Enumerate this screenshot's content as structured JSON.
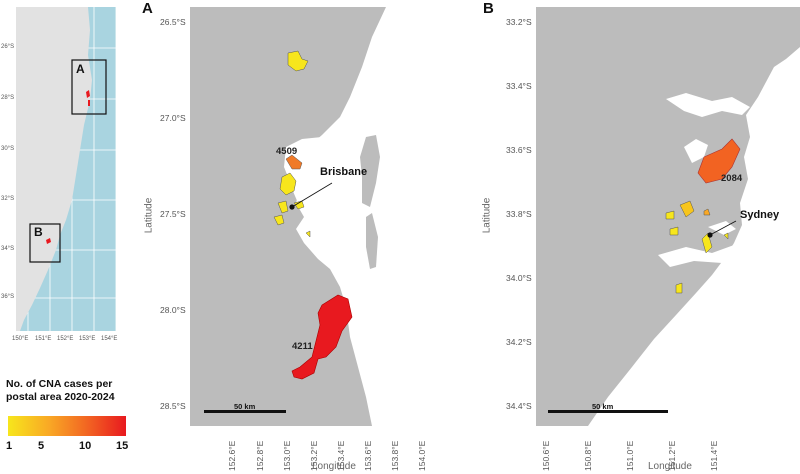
{
  "overview": {
    "box_a_label": "A",
    "box_b_label": "B",
    "y_ticks": [
      "26°S",
      "28°S",
      "30°S",
      "32°S",
      "34°S",
      "36°S"
    ],
    "x_ticks": [
      "150°E",
      "151°E",
      "152°E",
      "153°E",
      "154°E"
    ],
    "colors": {
      "land": "#e2e2e2",
      "sea": "#a9d4e0"
    }
  },
  "panel_a": {
    "letter": "A",
    "y_ticks": [
      "26.5°S",
      "27.0°S",
      "27.5°S",
      "28.0°S",
      "28.5°S"
    ],
    "x_ticks": [
      "152.6°E",
      "152.8°E",
      "153.0°E",
      "153.2°E",
      "153.4°E",
      "153.6°E",
      "153.8°E",
      "154.0°E"
    ],
    "x_axis_title": "Longitude",
    "y_axis_title": "Latitude",
    "postcode_4509": "4509",
    "postcode_4211": "4211",
    "city": "Brisbane",
    "scale_label": "50 km"
  },
  "panel_b": {
    "letter": "B",
    "y_ticks": [
      "33.2°S",
      "33.4°S",
      "33.6°S",
      "33.8°S",
      "34.0°S",
      "34.2°S",
      "34.4°S"
    ],
    "x_ticks": [
      "150.6°E",
      "150.8°E",
      "151.0°E",
      "151.2°E",
      "151.4°E"
    ],
    "x_axis_title": "Longitude",
    "y_axis_title": "Latitude",
    "postcode_2084": "2084",
    "city": "Sydney",
    "scale_label": "50 km"
  },
  "legend": {
    "title_line1": "No. of CNA cases per",
    "title_line2": "postal area 2020-2024",
    "ticks": [
      "1",
      "5",
      "10",
      "15"
    ],
    "range": [
      1,
      15
    ],
    "colors": [
      "#f7e61c",
      "#f9a825",
      "#f26322",
      "#e8191f"
    ]
  }
}
